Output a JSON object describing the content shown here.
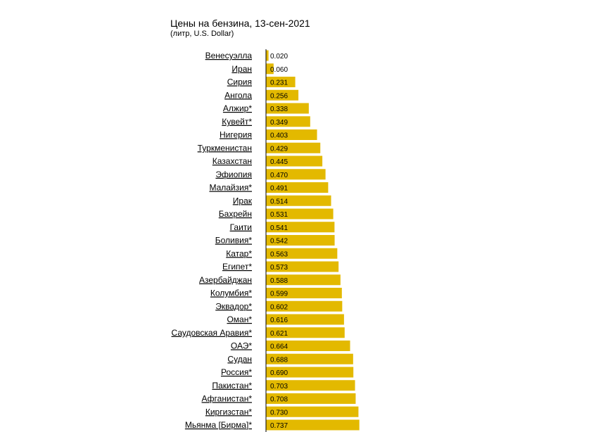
{
  "chart_data": {
    "type": "bar",
    "orientation": "horizontal",
    "title": "Цены на бензина, 13-сен-2021",
    "subtitle": "(литр, U.S. Dollar)",
    "categories": [
      "Венесуэлла",
      "Иран",
      "Сирия",
      "Ангола",
      "Алжир*",
      "Кувейт*",
      "Нигерия",
      "Туркменистан",
      "Казахстан",
      "Эфиопия",
      "Малайзия*",
      "Ирак",
      "Бахрейн",
      "Гаити",
      "Боливия*",
      "Катар*",
      "Египет*",
      "Азербайджан",
      "Колумбия*",
      "Эквадор*",
      "Оман*",
      "Саудовская Аравия*",
      "ОАЭ*",
      "Судан",
      "Россия*",
      "Пакистан*",
      "Афганистан*",
      "Киргизстан*",
      "Мьянма [Бирма]*"
    ],
    "values": [
      0.02,
      0.06,
      0.231,
      0.256,
      0.338,
      0.349,
      0.403,
      0.429,
      0.445,
      0.47,
      0.491,
      0.514,
      0.531,
      0.541,
      0.542,
      0.563,
      0.573,
      0.588,
      0.599,
      0.602,
      0.616,
      0.621,
      0.664,
      0.688,
      0.69,
      0.703,
      0.708,
      0.73,
      0.737
    ],
    "value_labels": [
      "0.020",
      "0.060",
      "0.231",
      "0.256",
      "0.338",
      "0.349",
      "0.403",
      "0.429",
      "0.445",
      "0.470",
      "0.491",
      "0.514",
      "0.531",
      "0.541",
      "0.542",
      "0.563",
      "0.573",
      "0.588",
      "0.599",
      "0.602",
      "0.616",
      "0.621",
      "0.664",
      "0.688",
      "0.690",
      "0.703",
      "0.708",
      "0.730",
      "0.737"
    ],
    "bar_color": "#e3b900",
    "axis_color": "#000000",
    "grid": false
  }
}
